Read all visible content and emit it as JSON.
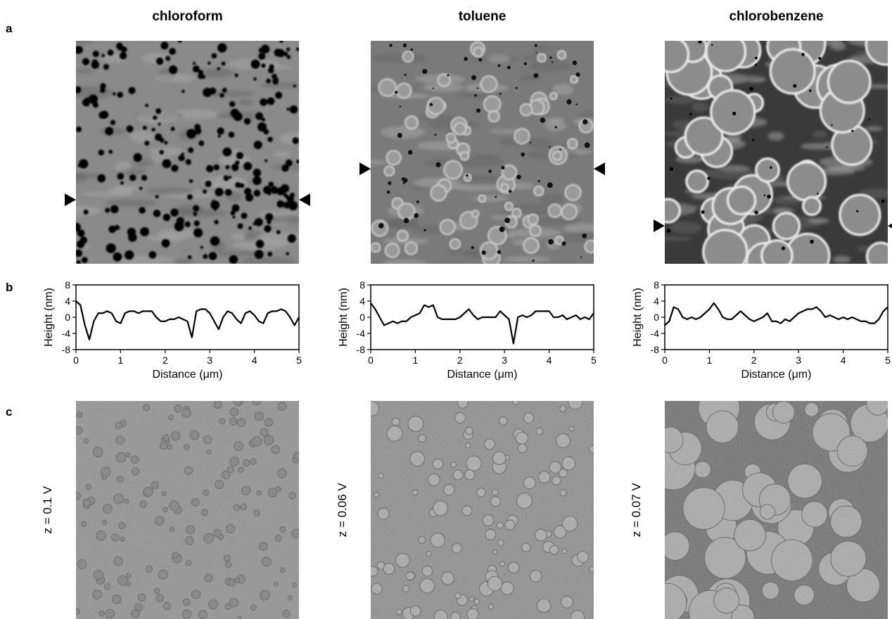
{
  "panel_labels": [
    "a",
    "b",
    "c"
  ],
  "columns": [
    {
      "title": "chloroform",
      "z_label": "z = 0.1 V"
    },
    {
      "title": "toluene",
      "z_label": "z = 0.06 V"
    },
    {
      "title": "chlorobenzene",
      "z_label": "z = 0.07 V"
    }
  ],
  "chart_data": [
    {
      "type": "line",
      "xlabel": "Distance (μm)",
      "ylabel": "Height (nm)",
      "color": "#000000",
      "x": [
        0,
        0.1,
        0.2,
        0.3,
        0.4,
        0.5,
        0.6,
        0.7,
        0.8,
        0.9,
        1,
        1.1,
        1.2,
        1.3,
        1.4,
        1.5,
        1.6,
        1.7,
        1.8,
        1.9,
        2,
        2.1,
        2.2,
        2.3,
        2.4,
        2.5,
        2.6,
        2.7,
        2.8,
        2.9,
        3,
        3.1,
        3.2,
        3.3,
        3.4,
        3.5,
        3.6,
        3.7,
        3.8,
        3.9,
        4,
        4.1,
        4.2,
        4.3,
        4.4,
        4.5,
        4.6,
        4.7,
        4.8,
        4.9,
        5
      ],
      "values": [
        4,
        3,
        -2,
        -5.5,
        -1,
        1,
        1,
        1.5,
        1,
        -1,
        -1.5,
        1,
        1.5,
        1.5,
        1,
        1.5,
        1.5,
        1.5,
        0,
        -1,
        -1,
        -0.5,
        -0.5,
        0,
        -0.5,
        -1,
        -5,
        1.5,
        2,
        2,
        1,
        -1,
        -3,
        0,
        1.5,
        1,
        -0.5,
        -1.5,
        1,
        1.5,
        0.5,
        -1,
        -1.5,
        1,
        1.5,
        1.5,
        2,
        1.5,
        0,
        -2,
        0
      ],
      "xlim": [
        0,
        5
      ],
      "ylim": [
        -8,
        8
      ],
      "xticks": [
        0,
        1,
        2,
        3,
        4,
        5
      ],
      "yticks": [
        -8,
        -4,
        0,
        4,
        8
      ]
    },
    {
      "type": "line",
      "xlabel": "Distance (μm)",
      "ylabel": "Height (nm)",
      "color": "#000000",
      "x": [
        0,
        0.1,
        0.2,
        0.3,
        0.4,
        0.5,
        0.6,
        0.7,
        0.8,
        0.9,
        1,
        1.1,
        1.2,
        1.3,
        1.4,
        1.5,
        1.6,
        1.7,
        1.8,
        1.9,
        2,
        2.1,
        2.2,
        2.3,
        2.4,
        2.5,
        2.6,
        2.7,
        2.8,
        2.9,
        3,
        3.1,
        3.2,
        3.3,
        3.4,
        3.5,
        3.6,
        3.7,
        3.8,
        3.9,
        4,
        4.1,
        4.2,
        4.3,
        4.4,
        4.5,
        4.6,
        4.7,
        4.8,
        4.9,
        5
      ],
      "values": [
        3.5,
        2,
        0,
        -2,
        -1.5,
        -1,
        -1.5,
        -1,
        -1,
        0,
        0.5,
        1,
        3,
        2.5,
        3,
        0,
        -0.5,
        -0.5,
        -0.5,
        -0.5,
        0,
        1,
        2,
        0.5,
        -0.5,
        0,
        0,
        0,
        0,
        1.5,
        0.5,
        -0.5,
        -6.5,
        0,
        0.5,
        0,
        0.5,
        1.5,
        1.5,
        1.5,
        1.5,
        0,
        0,
        0.5,
        -0.5,
        0,
        0.5,
        -0.5,
        0,
        -0.5,
        1
      ],
      "xlim": [
        0,
        5
      ],
      "ylim": [
        -8,
        8
      ],
      "xticks": [
        0,
        1,
        2,
        3,
        4,
        5
      ],
      "yticks": [
        -8,
        -4,
        0,
        4,
        8
      ]
    },
    {
      "type": "line",
      "xlabel": "Distance (μm)",
      "ylabel": "Height (nm)",
      "color": "#000000",
      "x": [
        0,
        0.1,
        0.2,
        0.3,
        0.4,
        0.5,
        0.6,
        0.7,
        0.8,
        0.9,
        1,
        1.1,
        1.2,
        1.3,
        1.4,
        1.5,
        1.6,
        1.7,
        1.8,
        1.9,
        2,
        2.1,
        2.2,
        2.3,
        2.4,
        2.5,
        2.6,
        2.7,
        2.8,
        2.9,
        3,
        3.1,
        3.2,
        3.3,
        3.4,
        3.5,
        3.6,
        3.7,
        3.8,
        3.9,
        4,
        4.1,
        4.2,
        4.3,
        4.4,
        4.5,
        4.6,
        4.7,
        4.8,
        4.9,
        5
      ],
      "values": [
        -2,
        -1,
        2.5,
        2,
        0,
        -0.5,
        0,
        -0.5,
        0,
        1,
        2,
        3.5,
        2,
        0,
        -0.5,
        -0.5,
        0.5,
        1.5,
        0.5,
        -0.5,
        -1,
        -0.5,
        0,
        1,
        -1,
        -1,
        -1.5,
        -0.5,
        -1,
        0,
        1,
        1.5,
        2,
        2,
        2.5,
        1.5,
        0,
        0.5,
        0,
        -0.5,
        0,
        -0.5,
        0,
        -0.5,
        -1,
        -1,
        -1.5,
        -1.5,
        -0.5,
        1.5,
        2.5
      ],
      "xlim": [
        0,
        5
      ],
      "ylim": [
        -8,
        8
      ],
      "xticks": [
        0,
        1,
        2,
        3,
        4,
        5
      ],
      "yticks": [
        -8,
        -4,
        0,
        4,
        8
      ]
    }
  ]
}
